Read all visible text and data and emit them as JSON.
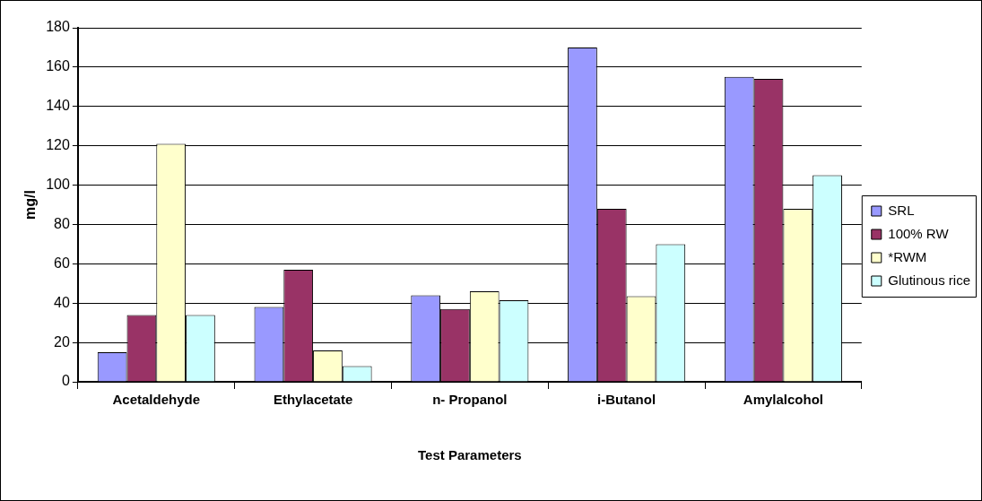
{
  "chart_data": {
    "type": "bar",
    "xlabel": "Test Parameters",
    "ylabel": "mg/l",
    "categories": [
      "Acetaldehyde",
      "Ethylacetate",
      "n- Propanol",
      "i-Butanol",
      "Amylalcohol"
    ],
    "series": [
      {
        "name": "SRL",
        "color": "#9999ff",
        "values": [
          15,
          38,
          44,
          170,
          155
        ]
      },
      {
        "name": "100% RW",
        "color": "#993366",
        "values": [
          34,
          57,
          37,
          88,
          154
        ]
      },
      {
        "name": "*RWM",
        "color": "#ffffcc",
        "values": [
          121,
          16,
          46,
          43.5,
          88
        ]
      },
      {
        "name": "Glutinous rice",
        "color": "#ccffff",
        "values": [
          34,
          8,
          41.5,
          70,
          105
        ]
      }
    ],
    "ylim": [
      0,
      180
    ],
    "yticks": [
      0,
      20,
      40,
      60,
      80,
      100,
      120,
      140,
      160,
      180
    ],
    "grid": "y",
    "legend": "right"
  }
}
